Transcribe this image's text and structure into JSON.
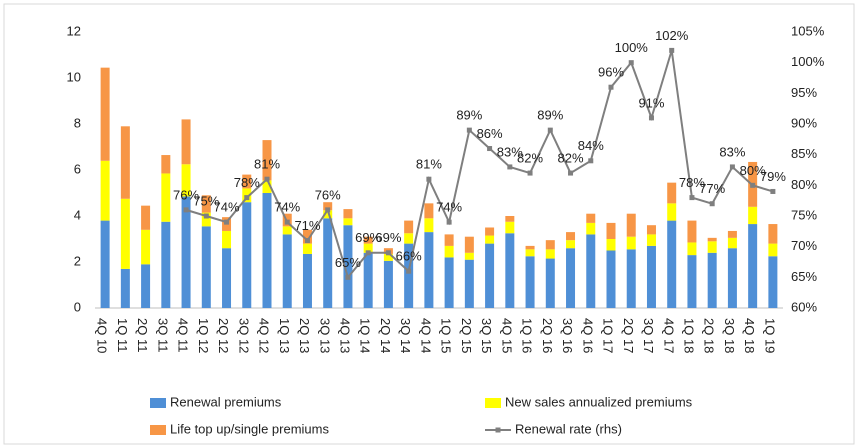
{
  "chart_data": {
    "type": "bar",
    "categories": [
      "4Q 10",
      "1Q 11",
      "2Q 11",
      "3Q 11",
      "4Q 11",
      "1Q 12",
      "2Q 12",
      "3Q 12",
      "4Q 12",
      "1Q 13",
      "2Q 13",
      "3Q 13",
      "4Q 13",
      "1Q 14",
      "2Q 14",
      "3Q 14",
      "4Q 14",
      "1Q 15",
      "2Q 15",
      "3Q 15",
      "4Q 15",
      "1Q 16",
      "2Q 16",
      "3Q 16",
      "4Q 16",
      "1Q 17",
      "2Q 17",
      "3Q 17",
      "4Q 17",
      "1Q 18",
      "2Q 18",
      "3Q 18",
      "4Q 18",
      "1Q 19"
    ],
    "series": [
      {
        "name": "Renewal premiums",
        "color": "#4f8fd6",
        "values": [
          3.8,
          1.7,
          1.9,
          3.75,
          4.85,
          3.55,
          2.6,
          4.6,
          5.0,
          3.2,
          2.35,
          3.9,
          3.6,
          2.4,
          2.05,
          2.8,
          3.3,
          2.2,
          2.1,
          2.8,
          3.25,
          2.25,
          2.15,
          2.6,
          3.2,
          2.5,
          2.55,
          2.7,
          3.8,
          2.3,
          2.4,
          2.6,
          3.65,
          2.25
        ]
      },
      {
        "name": "New sales annualized premiums",
        "color": "#ffff00",
        "values": [
          2.6,
          3.05,
          1.5,
          2.1,
          1.4,
          0.6,
          0.75,
          0.6,
          0.55,
          0.35,
          0.45,
          0.35,
          0.3,
          0.4,
          0.3,
          0.45,
          0.6,
          0.5,
          0.3,
          0.35,
          0.5,
          0.3,
          0.4,
          0.35,
          0.5,
          0.5,
          0.55,
          0.5,
          0.75,
          0.55,
          0.5,
          0.45,
          0.75,
          0.55
        ]
      },
      {
        "name": "Life top up/single premiums",
        "color": "#f79646",
        "values": [
          4.05,
          3.15,
          1.05,
          0.8,
          1.95,
          0.75,
          0.6,
          0.6,
          1.75,
          0.55,
          0.6,
          0.35,
          0.4,
          0.3,
          0.25,
          0.55,
          0.65,
          0.5,
          0.7,
          0.35,
          0.25,
          0.15,
          0.4,
          0.35,
          0.4,
          0.7,
          1.0,
          0.4,
          0.9,
          0.95,
          0.15,
          0.3,
          1.95,
          0.85
        ]
      },
      {
        "name": "Renewal rate (rhs)",
        "color": "#7f7f7f",
        "axis": "y2",
        "type": "line",
        "values": [
          null,
          null,
          null,
          null,
          76,
          75,
          74,
          78,
          81,
          74,
          71,
          76,
          65,
          69,
          69,
          66,
          81,
          74,
          89,
          86,
          83,
          82,
          89,
          82,
          84,
          96,
          100,
          91,
          102,
          78,
          77,
          83,
          80,
          79
        ],
        "value_labels": [
          null,
          null,
          null,
          null,
          "76%",
          "75%",
          "74%",
          "78%",
          "81%",
          "74%",
          "71%",
          "76%",
          "65%",
          "69%",
          "69%",
          "66%",
          "81%",
          "74%",
          "89%",
          "86%",
          "83%",
          "82%",
          "89%",
          "82%",
          "84%",
          "96%",
          "100%",
          "91%",
          "102%",
          "78%",
          "77%",
          "83%",
          "80%",
          "79%"
        ]
      }
    ],
    "ylim": [
      0,
      12
    ],
    "yticks": [
      0,
      2,
      4,
      6,
      8,
      10,
      12
    ],
    "y2lim": [
      60,
      105
    ],
    "y2ticks": [
      {
        "value": 60,
        "label": "60%"
      },
      {
        "value": 65,
        "label": "65%"
      },
      {
        "value": 70,
        "label": "70%"
      },
      {
        "value": 75,
        "label": "75%"
      },
      {
        "value": 80,
        "label": "80%"
      },
      {
        "value": 85,
        "label": "85%"
      },
      {
        "value": 90,
        "label": "90%"
      },
      {
        "value": 95,
        "label": "95%"
      },
      {
        "value": 100,
        "label": "100%"
      },
      {
        "value": 105,
        "label": "105%"
      }
    ],
    "legend": "bottom"
  }
}
